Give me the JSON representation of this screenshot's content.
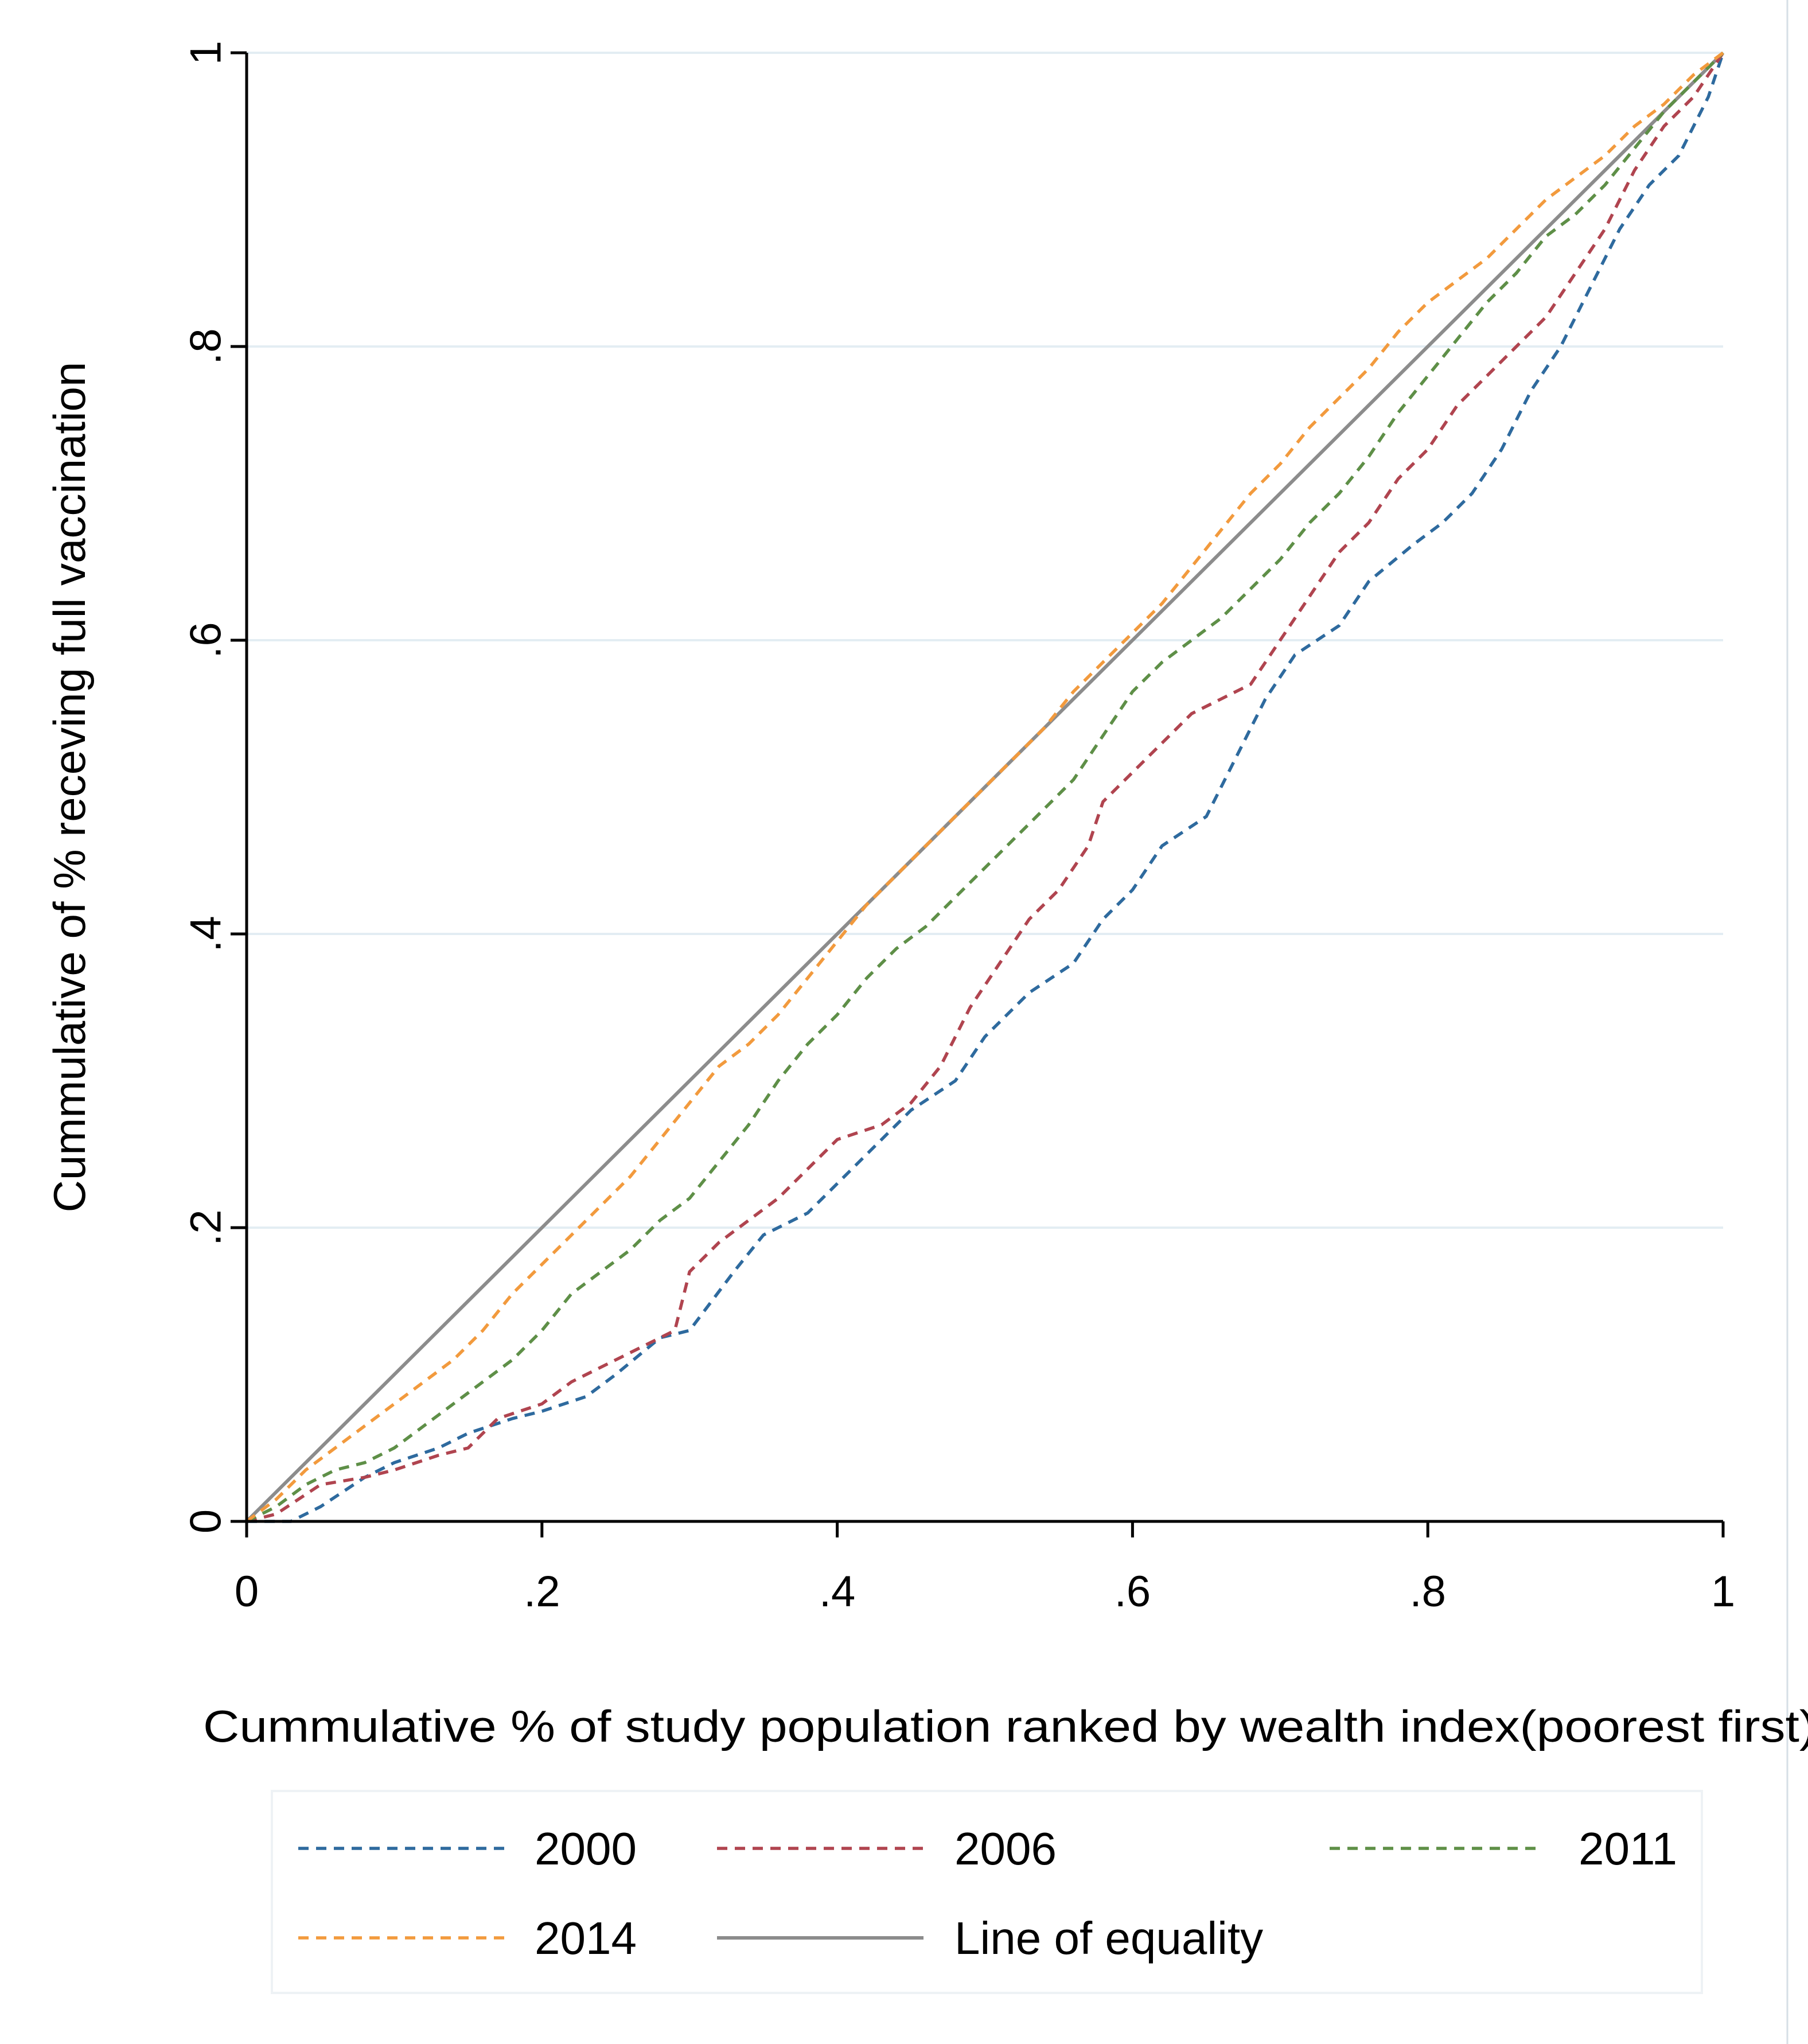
{
  "chart_data": {
    "type": "line",
    "title": "",
    "xlabel": "Cummulative % of study population ranked by wealth index(poorest first)",
    "ylabel": "Cummulative of % receving full vaccination",
    "xlim": [
      0,
      1
    ],
    "ylim": [
      0,
      1
    ],
    "x_ticks": [
      {
        "value": 0,
        "label": "0"
      },
      {
        "value": 0.2,
        "label": ".2"
      },
      {
        "value": 0.4,
        "label": ".4"
      },
      {
        "value": 0.6,
        "label": ".6"
      },
      {
        "value": 0.8,
        "label": ".8"
      },
      {
        "value": 1,
        "label": "1"
      }
    ],
    "y_ticks": [
      {
        "value": 0,
        "label": "0"
      },
      {
        "value": 0.2,
        "label": ".2"
      },
      {
        "value": 0.4,
        "label": ".4"
      },
      {
        "value": 0.6,
        "label": ".6"
      },
      {
        "value": 0.8,
        "label": ".8"
      },
      {
        "value": 1,
        "label": "1"
      }
    ],
    "grid": "horizontal",
    "legend_position": "bottom",
    "series": [
      {
        "name": "2000",
        "color": "#2e6a9e",
        "style": "dashed",
        "points": [
          [
            0,
            0
          ],
          [
            0.03,
            0
          ],
          [
            0.05,
            0.01
          ],
          [
            0.08,
            0.03
          ],
          [
            0.1,
            0.04
          ],
          [
            0.13,
            0.05
          ],
          [
            0.15,
            0.06
          ],
          [
            0.18,
            0.07
          ],
          [
            0.2,
            0.075
          ],
          [
            0.23,
            0.085
          ],
          [
            0.25,
            0.1
          ],
          [
            0.28,
            0.125
          ],
          [
            0.3,
            0.13
          ],
          [
            0.33,
            0.17
          ],
          [
            0.35,
            0.195
          ],
          [
            0.38,
            0.21
          ],
          [
            0.4,
            0.23
          ],
          [
            0.43,
            0.26
          ],
          [
            0.45,
            0.28
          ],
          [
            0.48,
            0.3
          ],
          [
            0.5,
            0.33
          ],
          [
            0.53,
            0.36
          ],
          [
            0.56,
            0.38
          ],
          [
            0.58,
            0.41
          ],
          [
            0.6,
            0.43
          ],
          [
            0.62,
            0.46
          ],
          [
            0.65,
            0.48
          ],
          [
            0.67,
            0.52
          ],
          [
            0.69,
            0.56
          ],
          [
            0.71,
            0.59
          ],
          [
            0.74,
            0.61
          ],
          [
            0.76,
            0.64
          ],
          [
            0.79,
            0.665
          ],
          [
            0.81,
            0.68
          ],
          [
            0.83,
            0.7
          ],
          [
            0.85,
            0.73
          ],
          [
            0.87,
            0.77
          ],
          [
            0.89,
            0.8
          ],
          [
            0.91,
            0.84
          ],
          [
            0.93,
            0.88
          ],
          [
            0.95,
            0.91
          ],
          [
            0.97,
            0.93
          ],
          [
            0.99,
            0.97
          ],
          [
            1,
            1
          ]
        ]
      },
      {
        "name": "2006",
        "color": "#b0444f",
        "style": "dashed",
        "points": [
          [
            0,
            0
          ],
          [
            0.02,
            0.005
          ],
          [
            0.05,
            0.025
          ],
          [
            0.08,
            0.03
          ],
          [
            0.1,
            0.035
          ],
          [
            0.13,
            0.045
          ],
          [
            0.15,
            0.05
          ],
          [
            0.17,
            0.07
          ],
          [
            0.2,
            0.08
          ],
          [
            0.22,
            0.095
          ],
          [
            0.25,
            0.11
          ],
          [
            0.27,
            0.12
          ],
          [
            0.29,
            0.13
          ],
          [
            0.3,
            0.17
          ],
          [
            0.32,
            0.19
          ],
          [
            0.34,
            0.205
          ],
          [
            0.36,
            0.22
          ],
          [
            0.38,
            0.24
          ],
          [
            0.4,
            0.26
          ],
          [
            0.43,
            0.27
          ],
          [
            0.45,
            0.285
          ],
          [
            0.47,
            0.31
          ],
          [
            0.49,
            0.35
          ],
          [
            0.51,
            0.38
          ],
          [
            0.53,
            0.41
          ],
          [
            0.55,
            0.43
          ],
          [
            0.57,
            0.46
          ],
          [
            0.58,
            0.49
          ],
          [
            0.6,
            0.51
          ],
          [
            0.62,
            0.53
          ],
          [
            0.64,
            0.55
          ],
          [
            0.66,
            0.56
          ],
          [
            0.68,
            0.57
          ],
          [
            0.7,
            0.6
          ],
          [
            0.72,
            0.63
          ],
          [
            0.74,
            0.66
          ],
          [
            0.76,
            0.68
          ],
          [
            0.78,
            0.71
          ],
          [
            0.8,
            0.73
          ],
          [
            0.82,
            0.76
          ],
          [
            0.84,
            0.78
          ],
          [
            0.86,
            0.8
          ],
          [
            0.88,
            0.82
          ],
          [
            0.9,
            0.85
          ],
          [
            0.92,
            0.88
          ],
          [
            0.94,
            0.92
          ],
          [
            0.96,
            0.95
          ],
          [
            0.98,
            0.97
          ],
          [
            1,
            1
          ]
        ]
      },
      {
        "name": "2011",
        "color": "#5e8f47",
        "style": "dashed",
        "points": [
          [
            0,
            0
          ],
          [
            0.02,
            0.01
          ],
          [
            0.04,
            0.025
          ],
          [
            0.06,
            0.035
          ],
          [
            0.08,
            0.04
          ],
          [
            0.1,
            0.05
          ],
          [
            0.12,
            0.065
          ],
          [
            0.14,
            0.08
          ],
          [
            0.16,
            0.095
          ],
          [
            0.18,
            0.11
          ],
          [
            0.2,
            0.13
          ],
          [
            0.22,
            0.155
          ],
          [
            0.24,
            0.17
          ],
          [
            0.26,
            0.185
          ],
          [
            0.28,
            0.205
          ],
          [
            0.3,
            0.22
          ],
          [
            0.32,
            0.245
          ],
          [
            0.34,
            0.27
          ],
          [
            0.36,
            0.3
          ],
          [
            0.38,
            0.325
          ],
          [
            0.4,
            0.345
          ],
          [
            0.42,
            0.37
          ],
          [
            0.44,
            0.39
          ],
          [
            0.46,
            0.405
          ],
          [
            0.48,
            0.425
          ],
          [
            0.5,
            0.445
          ],
          [
            0.52,
            0.465
          ],
          [
            0.54,
            0.485
          ],
          [
            0.56,
            0.505
          ],
          [
            0.58,
            0.535
          ],
          [
            0.6,
            0.565
          ],
          [
            0.62,
            0.585
          ],
          [
            0.64,
            0.6
          ],
          [
            0.66,
            0.615
          ],
          [
            0.68,
            0.635
          ],
          [
            0.7,
            0.655
          ],
          [
            0.72,
            0.68
          ],
          [
            0.74,
            0.7
          ],
          [
            0.76,
            0.725
          ],
          [
            0.78,
            0.755
          ],
          [
            0.8,
            0.78
          ],
          [
            0.82,
            0.805
          ],
          [
            0.84,
            0.83
          ],
          [
            0.86,
            0.85
          ],
          [
            0.88,
            0.875
          ],
          [
            0.9,
            0.89
          ],
          [
            0.92,
            0.91
          ],
          [
            0.94,
            0.935
          ],
          [
            0.96,
            0.96
          ],
          [
            0.98,
            0.98
          ],
          [
            1,
            1
          ]
        ]
      },
      {
        "name": "2014",
        "color": "#f29a3d",
        "style": "dashed",
        "points": [
          [
            0,
            0
          ],
          [
            0.02,
            0.015
          ],
          [
            0.04,
            0.035
          ],
          [
            0.06,
            0.05
          ],
          [
            0.08,
            0.065
          ],
          [
            0.1,
            0.08
          ],
          [
            0.12,
            0.095
          ],
          [
            0.14,
            0.11
          ],
          [
            0.16,
            0.13
          ],
          [
            0.18,
            0.155
          ],
          [
            0.2,
            0.175
          ],
          [
            0.22,
            0.195
          ],
          [
            0.24,
            0.215
          ],
          [
            0.26,
            0.235
          ],
          [
            0.28,
            0.26
          ],
          [
            0.3,
            0.285
          ],
          [
            0.32,
            0.31
          ],
          [
            0.34,
            0.325
          ],
          [
            0.36,
            0.345
          ],
          [
            0.38,
            0.37
          ],
          [
            0.4,
            0.395
          ],
          [
            0.42,
            0.42
          ],
          [
            0.44,
            0.44
          ],
          [
            0.46,
            0.46
          ],
          [
            0.48,
            0.48
          ],
          [
            0.5,
            0.5
          ],
          [
            0.52,
            0.52
          ],
          [
            0.54,
            0.54
          ],
          [
            0.56,
            0.565
          ],
          [
            0.58,
            0.585
          ],
          [
            0.6,
            0.605
          ],
          [
            0.62,
            0.625
          ],
          [
            0.64,
            0.65
          ],
          [
            0.66,
            0.675
          ],
          [
            0.68,
            0.7
          ],
          [
            0.7,
            0.72
          ],
          [
            0.72,
            0.745
          ],
          [
            0.74,
            0.765
          ],
          [
            0.76,
            0.785
          ],
          [
            0.78,
            0.81
          ],
          [
            0.8,
            0.83
          ],
          [
            0.82,
            0.845
          ],
          [
            0.84,
            0.86
          ],
          [
            0.86,
            0.88
          ],
          [
            0.88,
            0.9
          ],
          [
            0.9,
            0.915
          ],
          [
            0.92,
            0.93
          ],
          [
            0.94,
            0.95
          ],
          [
            0.96,
            0.965
          ],
          [
            0.98,
            0.985
          ],
          [
            1,
            1
          ]
        ]
      },
      {
        "name": "Line of equality",
        "color": "#8c8c8c",
        "style": "solid",
        "points": [
          [
            0,
            0
          ],
          [
            1,
            1
          ]
        ]
      }
    ]
  }
}
